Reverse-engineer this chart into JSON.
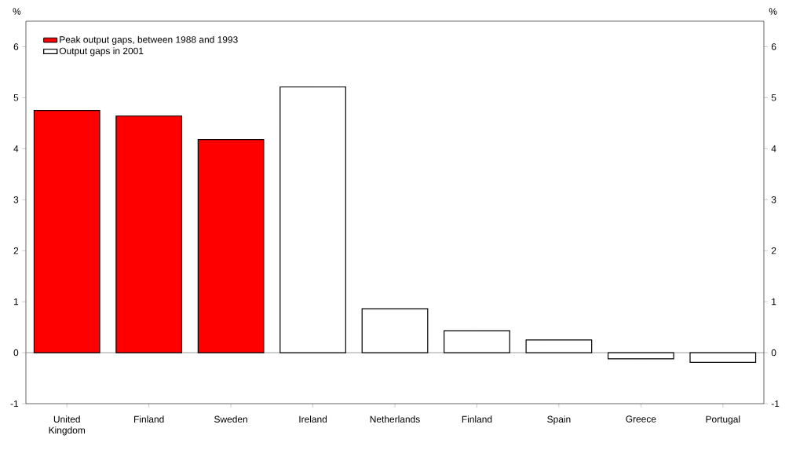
{
  "chart_data": {
    "type": "bar",
    "ylabel": "%",
    "y2label": "%",
    "categories": [
      "United Kingdom",
      "Finland",
      "Sweden",
      "Ireland",
      "Netherlands",
      "Finland",
      "Spain",
      "Greece",
      "Portugal"
    ],
    "series": [
      {
        "name": "Peak output gaps, between 1988 and 1993",
        "color": "#ff0000",
        "values": [
          4.75,
          4.64,
          4.18,
          null,
          null,
          null,
          null,
          null,
          null
        ]
      },
      {
        "name": "Output gaps in 2001",
        "color": "#000000",
        "values": [
          null,
          null,
          null,
          5.21,
          0.86,
          0.43,
          0.25,
          -0.12,
          -0.19
        ]
      }
    ],
    "ylim": [
      -1,
      6.5
    ],
    "yticks": [
      -1,
      0,
      1,
      2,
      3,
      4,
      5,
      6
    ],
    "y2lim": [
      -1,
      6.5
    ],
    "y2ticks": [
      -1,
      0,
      1,
      2,
      3,
      4,
      5,
      6
    ],
    "ref_lines": [
      {
        "axis": "y",
        "value": 0,
        "color": "#808080"
      }
    ],
    "legend": "top left"
  }
}
